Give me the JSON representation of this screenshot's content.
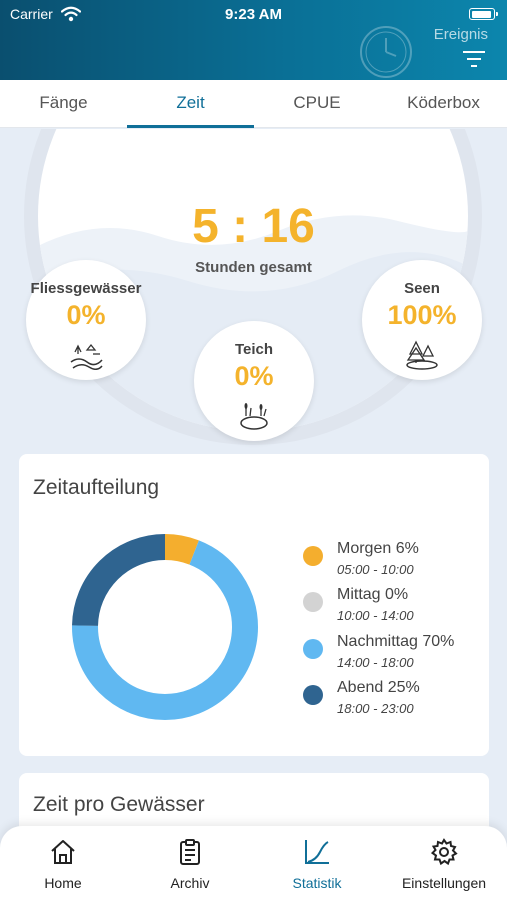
{
  "status_bar": {
    "carrier": "Carrier",
    "time": "9:23 AM"
  },
  "header": {
    "event_label": "Ereignis",
    "icons": [
      "clock-icon",
      "filter-icon"
    ]
  },
  "tabs": [
    {
      "label": "Fänge",
      "active": false
    },
    {
      "label": "Zeit",
      "active": true
    },
    {
      "label": "CPUE",
      "active": false
    },
    {
      "label": "Köderbox",
      "active": false
    }
  ],
  "summary": {
    "total_time": "5 : 16",
    "total_label": "Stunden gesamt",
    "waters": [
      {
        "name": "Fliessgewässer",
        "percent": "0%",
        "icon": "river-icon"
      },
      {
        "name": "Teich",
        "percent": "0%",
        "icon": "pond-icon"
      },
      {
        "name": "Seen",
        "percent": "100%",
        "icon": "lake-icon"
      }
    ]
  },
  "time_split": {
    "title": "Zeitaufteilung",
    "chart_data": {
      "type": "pie",
      "variant": "donut",
      "categories": [
        "Morgen",
        "Mittag",
        "Nachmittag",
        "Abend"
      ],
      "values": [
        6,
        0,
        70,
        25
      ],
      "colors": [
        "#f4ae2e",
        "#d3d3d3",
        "#60b8f1",
        "#2f6490"
      ]
    },
    "legend": [
      {
        "label": "Morgen 6%",
        "range": "05:00 - 10:00",
        "color": "#f4ae2e"
      },
      {
        "label": "Mittag 0%",
        "range": "10:00 - 14:00",
        "color": "#d3d3d3"
      },
      {
        "label": "Nachmittag 70%",
        "range": "14:00 - 18:00",
        "color": "#60b8f1"
      },
      {
        "label": "Abend 25%",
        "range": "18:00 - 23:00",
        "color": "#2f6490"
      }
    ]
  },
  "next_card": {
    "title": "Zeit pro Gewässer"
  },
  "bottom_nav": [
    {
      "label": "Home",
      "icon": "home-icon",
      "active": false
    },
    {
      "label": "Archiv",
      "icon": "clipboard-icon",
      "active": false
    },
    {
      "label": "Statistik",
      "icon": "chart-icon",
      "active": true
    },
    {
      "label": "Einstellungen",
      "icon": "gear-icon",
      "active": false
    }
  ],
  "colors": {
    "accent": "#106f98",
    "highlight": "#f4b32c"
  }
}
